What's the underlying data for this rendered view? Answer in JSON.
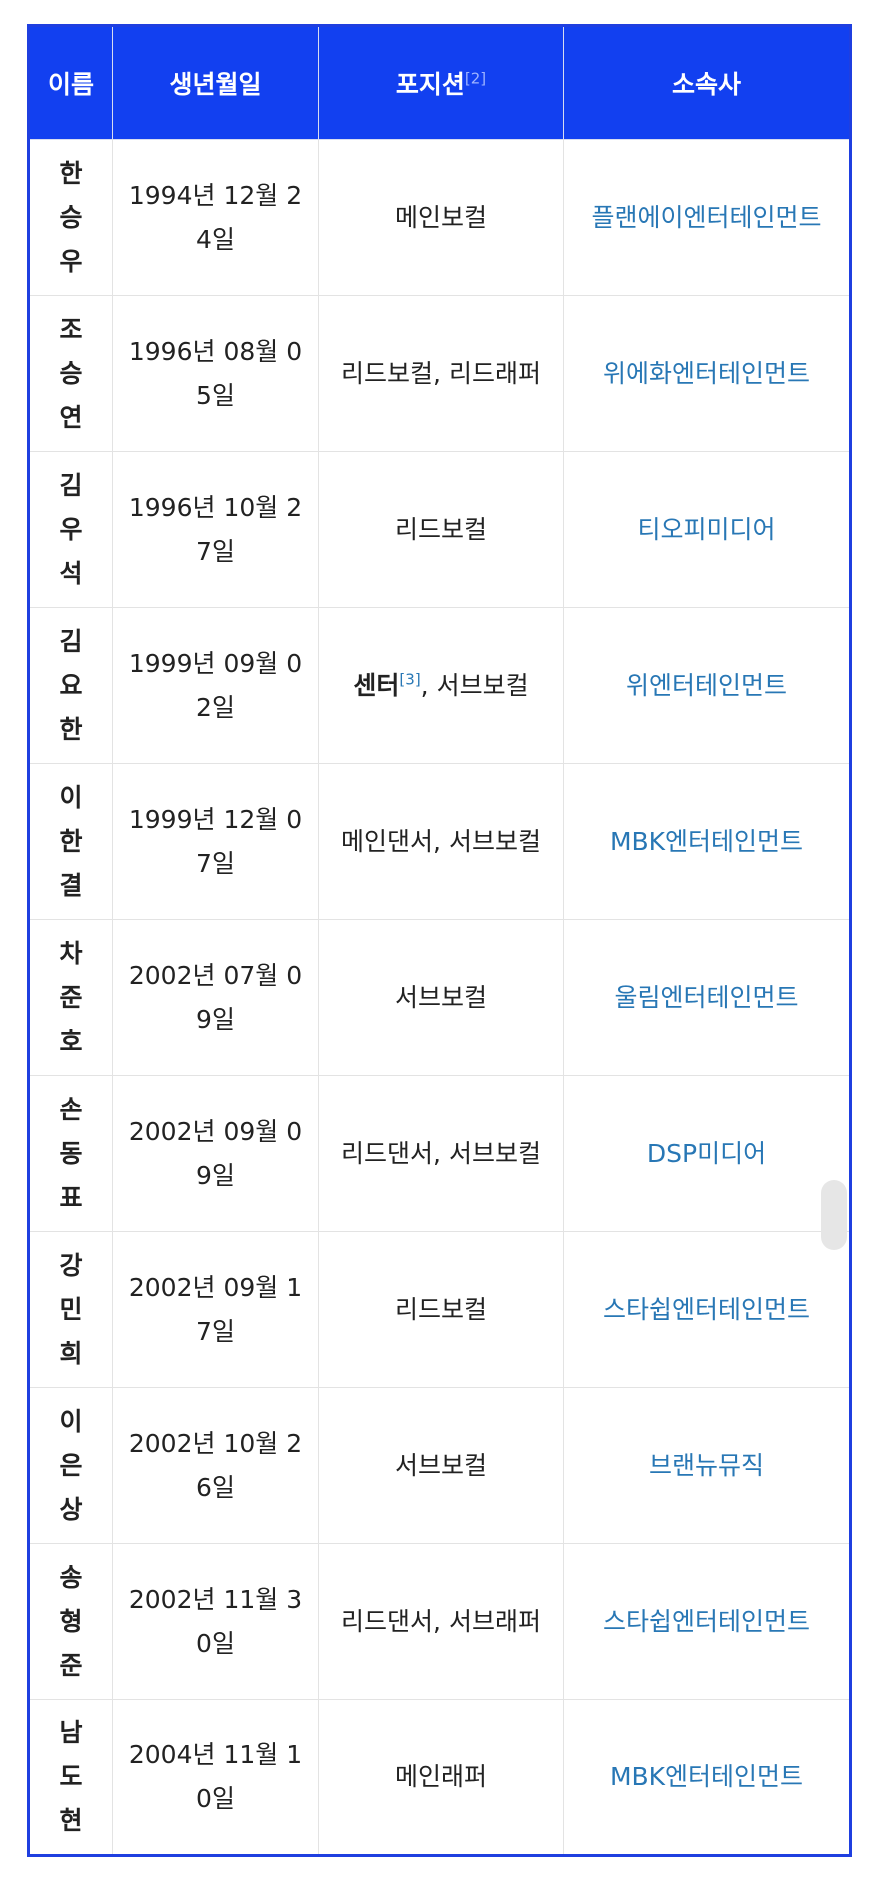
{
  "table": {
    "header": [
      "이름",
      "생년월일",
      "포지션",
      "소속사"
    ],
    "header_note": "[2]",
    "rows": [
      {
        "name": "한승우",
        "birth": "1994년 12월 24일",
        "position": "메인보컬",
        "agency": "플랜에이엔터테인먼트"
      },
      {
        "name": "조승연",
        "birth": "1996년 08월 05일",
        "position": "리드보컬, 리드래퍼",
        "agency": "위에화엔터테인먼트"
      },
      {
        "name": "김우석",
        "birth": "1996년 10월 27일",
        "position": "리드보컬",
        "agency": "티오피미디어"
      },
      {
        "name": "김요한",
        "birth": "1999년 09월 02일",
        "position": "센터",
        "position_note": "[3]",
        "position_rest": ", 서브보컬",
        "agency": "위엔터테인먼트"
      },
      {
        "name": "이한결",
        "birth": "1999년 12월 07일",
        "position": "메인댄서, 서브보컬",
        "agency": "MBK엔터테인먼트"
      },
      {
        "name": "차준호",
        "birth": "2002년 07월 09일",
        "position": "서브보컬",
        "agency": "울림엔터테인먼트"
      },
      {
        "name": "손동표",
        "birth": "2002년 09월 09일",
        "position": "리드댄서, 서브보컬",
        "agency": "DSP미디어"
      },
      {
        "name": "강민희",
        "birth": "2002년 09월 17일",
        "position": "리드보컬",
        "agency": "스타쉽엔터테인먼트"
      },
      {
        "name": "이은상",
        "birth": "2002년 10월 26일",
        "position": "서브보컬",
        "agency": "브랜뉴뮤직"
      },
      {
        "name": "송형준",
        "birth": "2002년 11월 30일",
        "position": "리드댄서, 서브래퍼",
        "agency": "스타쉽엔터테인먼트"
      },
      {
        "name": "남도현",
        "birth": "2004년 11월 10일",
        "position": "메인래퍼",
        "agency": "MBK엔터테인먼트"
      }
    ]
  }
}
